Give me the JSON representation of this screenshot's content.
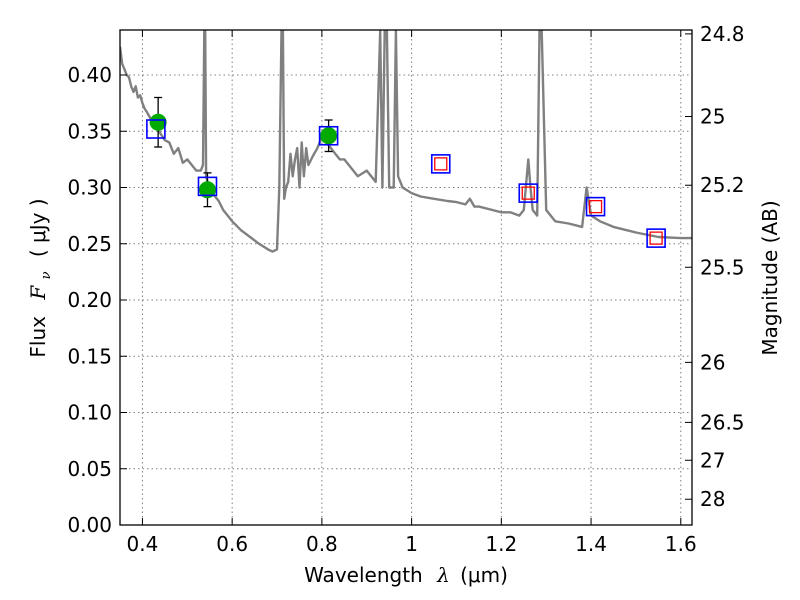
{
  "chart_data": {
    "type": "scatter",
    "title": "",
    "xlabel_text": "Wavelength",
    "xlabel_symbol": "λ",
    "xlabel_unit": "(μm)",
    "ylabel_text": "Flux",
    "ylabel_symbol": "F",
    "ylabel_subscript": "ν",
    "ylabel_unit": "( μJy )",
    "y2label": "Magnitude (AB)",
    "xlim": [
      0.35,
      1.625
    ],
    "ylim": [
      0.0,
      0.44
    ],
    "grid": true,
    "x_ticks": [
      0.4,
      0.6,
      0.8,
      1.0,
      1.2,
      1.4,
      1.6
    ],
    "x_tick_labels": [
      "0.4",
      "0.6",
      "0.8",
      "1",
      "1.2",
      "1.4",
      "1.6"
    ],
    "y_ticks": [
      0.0,
      0.05,
      0.1,
      0.15,
      0.2,
      0.25,
      0.3,
      0.35,
      0.4
    ],
    "y_tick_labels": [
      "0.00",
      "0.05",
      "0.10",
      "0.15",
      "0.20",
      "0.25",
      "0.30",
      "0.35",
      "0.40"
    ],
    "mag_ticks": [
      24.8,
      25,
      25.2,
      25.5,
      26,
      26.5,
      27,
      28
    ],
    "mag_tick_labels": [
      "24.8",
      "25",
      "25.2",
      "25.5",
      "26",
      "26.5",
      "27",
      "28"
    ],
    "colors": {
      "model": "#808080",
      "observed": "#00aa00",
      "model_photometry": "#0000ff",
      "secondary_photometry": "#ff0000",
      "errorbar": "#000000"
    },
    "series": [
      {
        "name": "model spectrum",
        "kind": "line",
        "x": [
          0.35,
          0.355,
          0.36,
          0.365,
          0.37,
          0.375,
          0.38,
          0.385,
          0.39,
          0.395,
          0.4,
          0.405,
          0.41,
          0.42,
          0.43,
          0.44,
          0.45,
          0.46,
          0.47,
          0.48,
          0.49,
          0.5,
          0.51,
          0.52,
          0.53,
          0.535,
          0.538,
          0.54,
          0.542,
          0.545,
          0.55,
          0.56,
          0.57,
          0.58,
          0.59,
          0.6,
          0.62,
          0.64,
          0.66,
          0.68,
          0.69,
          0.7,
          0.705,
          0.71,
          0.713,
          0.716,
          0.72,
          0.725,
          0.73,
          0.735,
          0.74,
          0.745,
          0.75,
          0.755,
          0.76,
          0.765,
          0.77,
          0.78,
          0.79,
          0.8,
          0.81,
          0.82,
          0.83,
          0.84,
          0.85,
          0.86,
          0.87,
          0.88,
          0.9,
          0.92,
          0.93,
          0.935,
          0.94,
          0.945,
          0.95,
          0.96,
          0.965,
          0.97,
          0.975,
          0.98,
          1.0,
          1.02,
          1.05,
          1.08,
          1.1,
          1.12,
          1.13,
          1.14,
          1.15,
          1.18,
          1.2,
          1.22,
          1.24,
          1.25,
          1.26,
          1.265,
          1.27,
          1.28,
          1.285,
          1.29,
          1.3,
          1.32,
          1.35,
          1.38,
          1.39,
          1.4,
          1.42,
          1.45,
          1.5,
          1.55,
          1.6,
          1.625
        ],
        "values": [
          0.425,
          0.41,
          0.405,
          0.4,
          0.398,
          0.39,
          0.385,
          0.39,
          0.38,
          0.382,
          0.375,
          0.37,
          0.367,
          0.36,
          0.355,
          0.348,
          0.342,
          0.34,
          0.33,
          0.335,
          0.322,
          0.325,
          0.32,
          0.315,
          0.315,
          0.32,
          0.44,
          0.44,
          0.31,
          0.305,
          0.3,
          0.293,
          0.288,
          0.28,
          0.275,
          0.27,
          0.262,
          0.256,
          0.25,
          0.245,
          0.243,
          0.245,
          0.3,
          0.44,
          0.44,
          0.29,
          0.3,
          0.305,
          0.33,
          0.31,
          0.325,
          0.335,
          0.3,
          0.34,
          0.31,
          0.335,
          0.32,
          0.328,
          0.335,
          0.345,
          0.34,
          0.335,
          0.33,
          0.325,
          0.325,
          0.32,
          0.315,
          0.31,
          0.315,
          0.305,
          0.44,
          0.3,
          0.44,
          0.44,
          0.3,
          0.3,
          0.44,
          0.31,
          0.305,
          0.3,
          0.295,
          0.292,
          0.29,
          0.288,
          0.287,
          0.285,
          0.29,
          0.283,
          0.283,
          0.28,
          0.278,
          0.278,
          0.275,
          0.28,
          0.325,
          0.3,
          0.28,
          0.275,
          0.44,
          0.44,
          0.28,
          0.27,
          0.268,
          0.265,
          0.3,
          0.275,
          0.27,
          0.265,
          0.26,
          0.256,
          0.255,
          0.255
        ]
      },
      {
        "name": "observed photometry",
        "kind": "points_errorbars",
        "x": [
          0.435,
          0.545,
          0.815
        ],
        "values": [
          0.358,
          0.298,
          0.346
        ],
        "errors": [
          0.022,
          0.015,
          0.014
        ]
      },
      {
        "name": "model photometry",
        "kind": "open_squares",
        "x": [
          0.43,
          0.545,
          0.815,
          1.065,
          1.26,
          1.41,
          1.545
        ],
        "values": [
          0.352,
          0.301,
          0.346,
          0.321,
          0.295,
          0.283,
          0.255
        ]
      },
      {
        "name": "secondary model photometry",
        "kind": "open_squares",
        "x": [
          1.065,
          1.26,
          1.41,
          1.545
        ],
        "values": [
          0.321,
          0.295,
          0.283,
          0.255
        ]
      }
    ]
  }
}
